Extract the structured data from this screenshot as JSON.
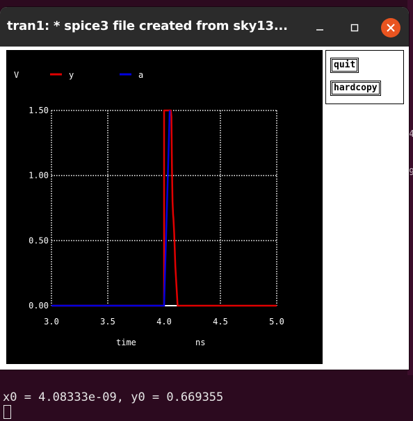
{
  "window": {
    "title": "tran1: * spice3 file created from sky13...",
    "controls": {
      "minimize": "minimize-icon",
      "maximize": "maximize-icon",
      "close": "close-icon"
    }
  },
  "buttons": {
    "quit": "quit",
    "hardcopy": "hardcopy"
  },
  "terminal": {
    "output": "x0 = 4.08333e-09, y0 = 0.669355",
    "edge_chars": [
      "4",
      "9"
    ]
  },
  "colors": {
    "y": "#e00000",
    "a": "#0000e0",
    "grid": "#ffffff",
    "background": "#000000"
  },
  "chart_data": {
    "type": "line",
    "ylabel": "V",
    "xlabel": "time",
    "xunit": "ns",
    "xlim": [
      3.0,
      5.0
    ],
    "ylim": [
      0.0,
      1.5
    ],
    "xticks": [
      "3.0",
      "3.5",
      "4.0",
      "4.5",
      "5.0"
    ],
    "yticks": [
      "1.50",
      "1.00",
      "0.50",
      "0.00"
    ],
    "xtick_values": [
      3.0,
      3.5,
      4.0,
      4.5,
      5.0
    ],
    "ytick_values": [
      1.5,
      1.0,
      0.5,
      0.0
    ],
    "grid": true,
    "legend": "top-left",
    "series": [
      {
        "name": "y",
        "color": "#e00000",
        "x": [
          3.0,
          4.0,
          4.0,
          4.02,
          4.04,
          4.06,
          4.065,
          4.07,
          4.075,
          4.08,
          4.083,
          4.09,
          4.1,
          4.12,
          5.0
        ],
        "y": [
          0.0,
          0.0,
          1.5,
          1.5,
          1.5,
          1.5,
          1.45,
          1.05,
          0.8,
          0.7,
          0.67,
          0.55,
          0.3,
          0.0,
          0.0
        ]
      },
      {
        "name": "a",
        "color": "#0000e0",
        "x": [
          3.0,
          4.0,
          4.05,
          4.05
        ],
        "y": [
          0.0,
          0.0,
          1.5,
          1.5
        ]
      }
    ]
  }
}
